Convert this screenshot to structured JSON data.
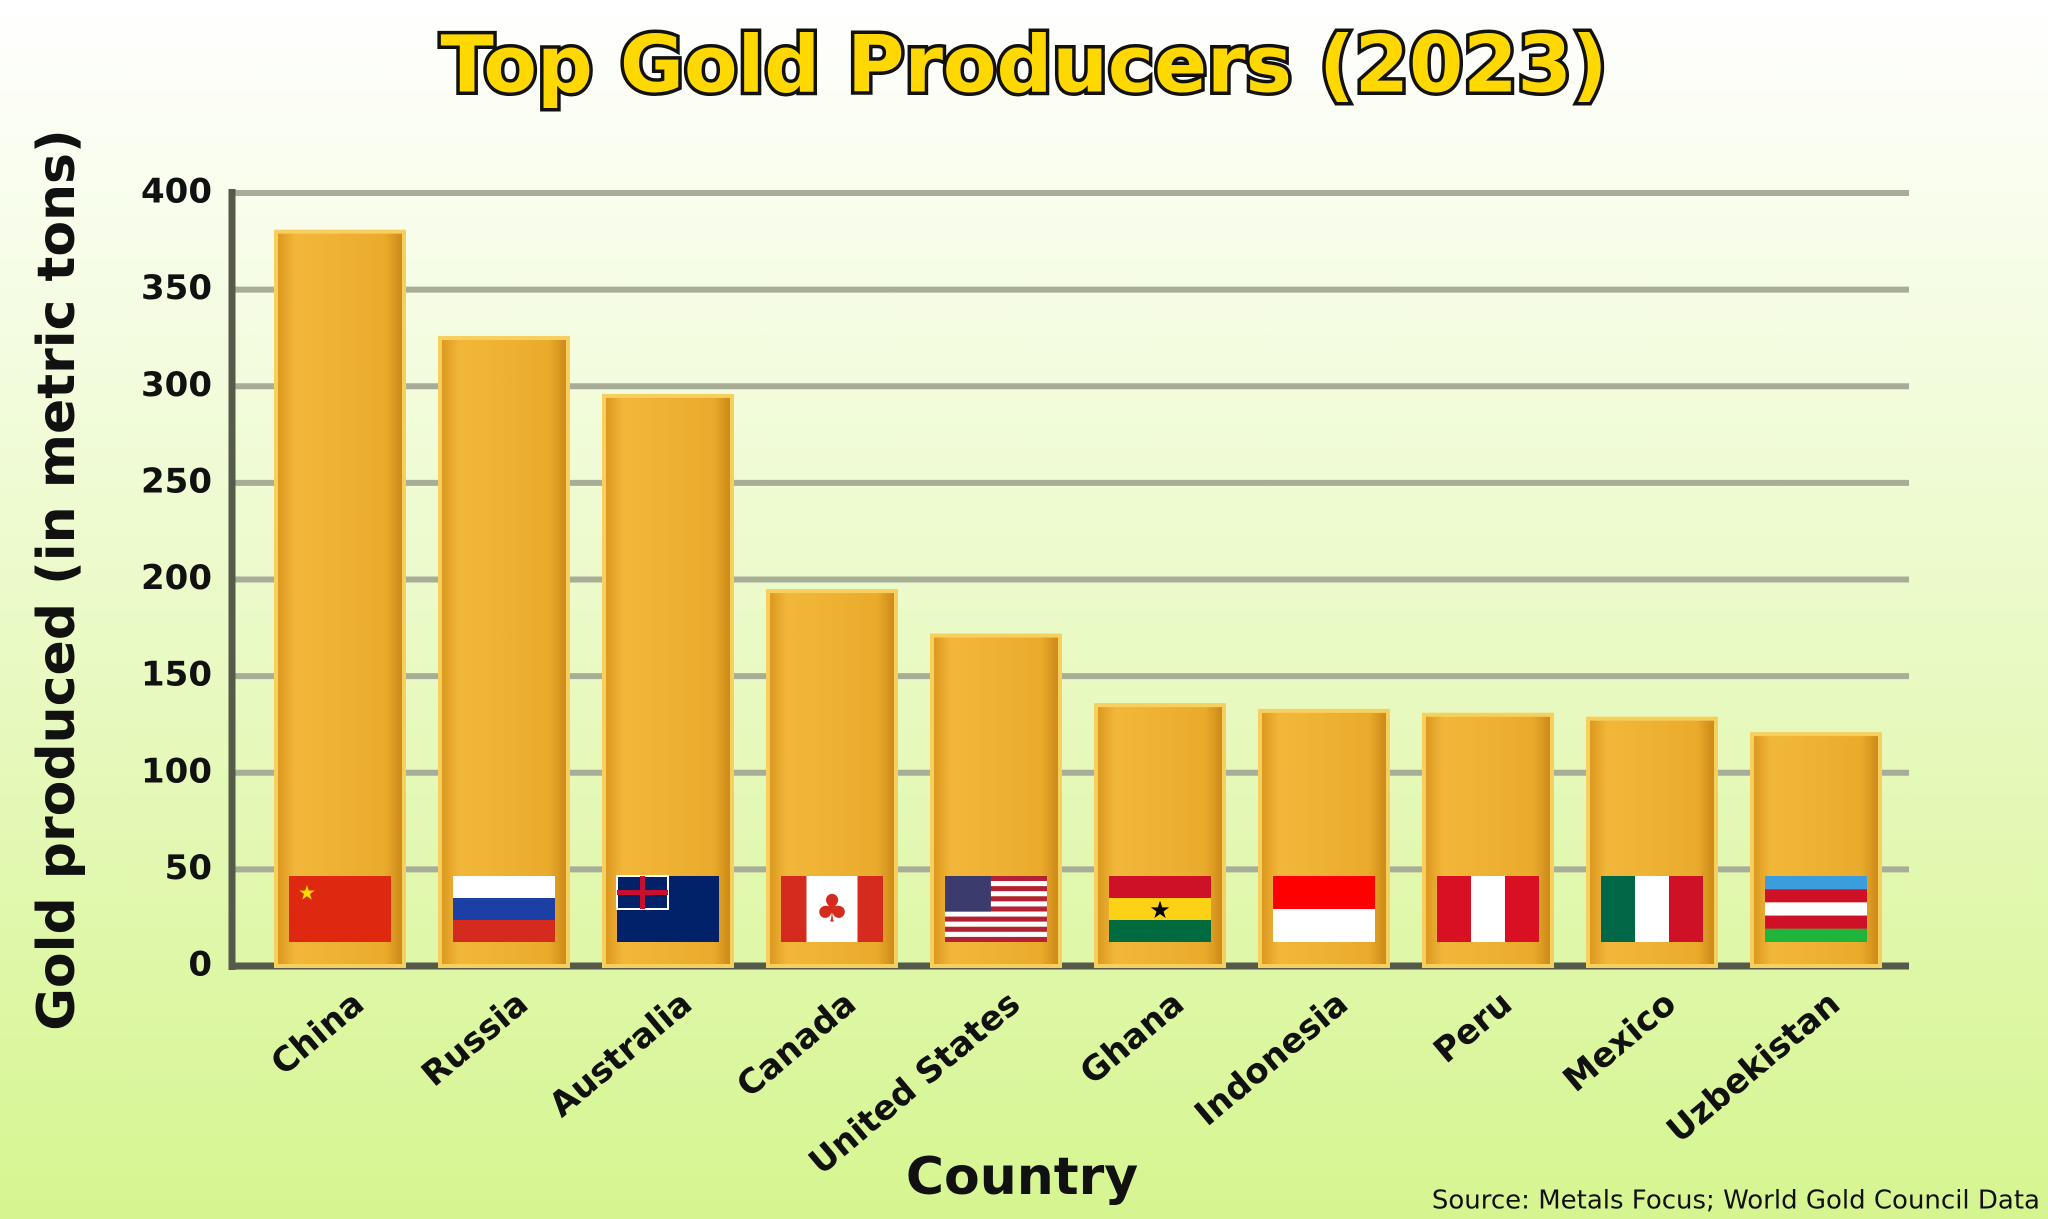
{
  "chart_data": {
    "type": "bar",
    "title": "Top Gold Producers (2023)",
    "x_label": "Country",
    "y_label": "Gold produced (in metric tons)",
    "source": "Source: Metals Focus; World Gold Council Data",
    "categories": [
      "China",
      "Russia",
      "Australia",
      "Canada",
      "United States",
      "Ghana",
      "Indonesia",
      "Peru",
      "Mexico",
      "Uzbekistan"
    ],
    "values": [
      380,
      325,
      295,
      194,
      171,
      135,
      132,
      130,
      128,
      120
    ],
    "color": "#e8a82a",
    "ylim": [
      0,
      400
    ],
    "yticks": [
      0,
      50,
      100,
      150,
      200,
      250,
      300,
      350,
      400
    ],
    "grid": true
  }
}
